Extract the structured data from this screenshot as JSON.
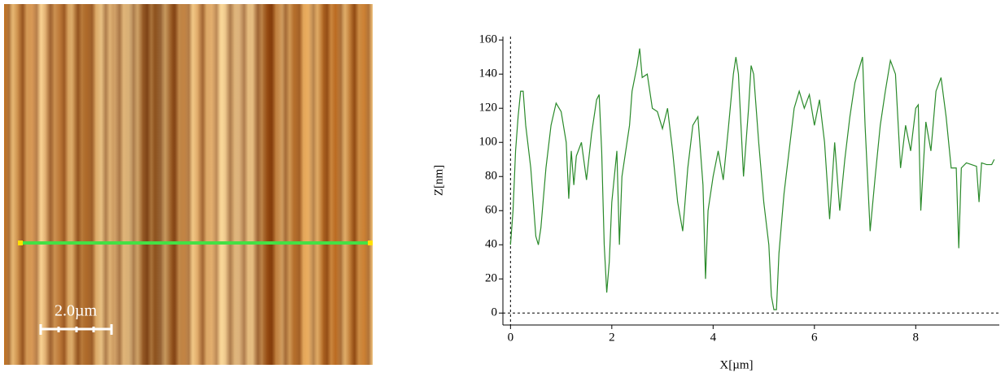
{
  "image": {
    "scale_bar": "2.0µm"
  },
  "chart_data": {
    "type": "line",
    "x_label": "X[µm]",
    "y_label": "Z[nm]",
    "x": [
      0,
      0.05,
      0.1,
      0.15,
      0.2,
      0.25,
      0.3,
      0.4,
      0.5,
      0.55,
      0.6,
      0.7,
      0.8,
      0.9,
      1.0,
      1.1,
      1.15,
      1.2,
      1.25,
      1.3,
      1.4,
      1.5,
      1.6,
      1.7,
      1.75,
      1.8,
      1.85,
      1.9,
      1.95,
      2.0,
      2.1,
      2.15,
      2.2,
      2.3,
      2.35,
      2.4,
      2.5,
      2.55,
      2.6,
      2.7,
      2.8,
      2.9,
      3.0,
      3.1,
      3.2,
      3.3,
      3.4,
      3.5,
      3.6,
      3.7,
      3.8,
      3.85,
      3.9,
      4.0,
      4.1,
      4.2,
      4.3,
      4.4,
      4.45,
      4.5,
      4.6,
      4.7,
      4.75,
      4.8,
      4.9,
      5.0,
      5.1,
      5.15,
      5.2,
      5.25,
      5.3,
      5.4,
      5.5,
      5.6,
      5.7,
      5.8,
      5.9,
      6.0,
      6.1,
      6.2,
      6.3,
      6.4,
      6.5,
      6.6,
      6.7,
      6.8,
      6.9,
      6.95,
      7.0,
      7.1,
      7.2,
      7.3,
      7.4,
      7.5,
      7.6,
      7.7,
      7.8,
      7.9,
      8.0,
      8.05,
      8.1,
      8.2,
      8.3,
      8.4,
      8.5,
      8.6,
      8.7,
      8.8,
      8.85,
      8.9,
      9.0,
      9.1,
      9.2,
      9.25,
      9.3,
      9.4,
      9.5,
      9.55
    ],
    "series": [
      {
        "color": "#2a8a2a",
        "values": [
          40,
          60,
          95,
          115,
          130,
          130,
          110,
          85,
          45,
          40,
          50,
          85,
          110,
          123,
          118,
          100,
          67,
          95,
          75,
          92,
          100,
          78,
          105,
          125,
          128,
          95,
          40,
          12,
          30,
          65,
          95,
          40,
          80,
          100,
          110,
          130,
          145,
          155,
          138,
          140,
          120,
          118,
          108,
          120,
          95,
          65,
          48,
          85,
          110,
          115,
          75,
          20,
          60,
          80,
          95,
          78,
          108,
          140,
          150,
          140,
          80,
          120,
          145,
          140,
          100,
          65,
          40,
          10,
          2,
          2,
          35,
          70,
          95,
          120,
          130,
          120,
          128,
          110,
          125,
          100,
          55,
          100,
          60,
          90,
          115,
          135,
          145,
          150,
          110,
          48,
          80,
          110,
          130,
          148,
          140,
          85,
          110,
          95,
          120,
          122,
          60,
          112,
          95,
          130,
          138,
          115,
          85,
          85,
          38,
          85,
          88,
          87,
          86,
          65,
          88,
          87,
          87,
          90
        ]
      }
    ],
    "xlim": [
      -0.15,
      9.65
    ],
    "ylim": [
      -7,
      162
    ],
    "xticks": [
      0,
      2,
      4,
      6,
      8
    ],
    "yticks": [
      0,
      20,
      40,
      60,
      80,
      100,
      120,
      140,
      160
    ]
  }
}
